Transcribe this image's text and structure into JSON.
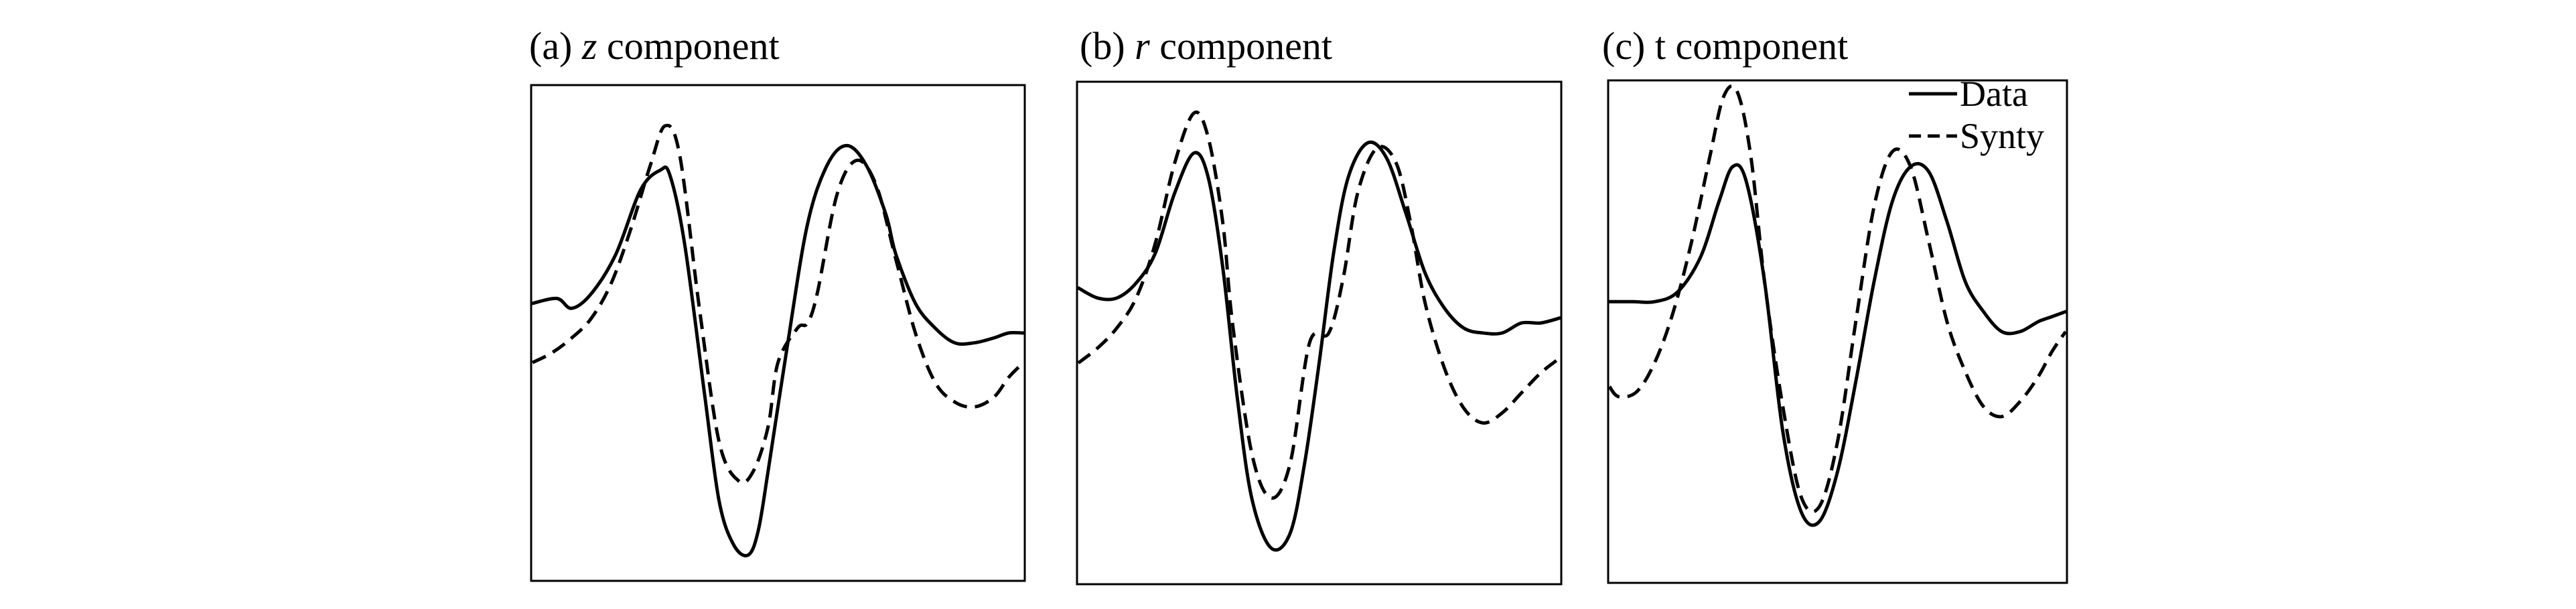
{
  "figure": {
    "panels": [
      {
        "prefix": "(a) ",
        "symbol": "z",
        "suffix": " component",
        "symbol_italic": true
      },
      {
        "prefix": "(b) ",
        "symbol": "r",
        "suffix": " component",
        "symbol_italic": true
      },
      {
        "prefix": "(c) ",
        "symbol": "t",
        "suffix": " component",
        "symbol_italic": false
      }
    ],
    "legend": {
      "placement": "top-right of panel (c)",
      "entries": [
        "Data",
        "Synty"
      ]
    }
  },
  "chart_data": [
    {
      "type": "line",
      "title": "(a) z component",
      "xlabel": "",
      "ylabel": "",
      "xlim": [
        0,
        1
      ],
      "ylim": [
        0,
        1
      ],
      "grid": false,
      "axis_ticks": false,
      "series": [
        {
          "name": "Data",
          "style": "solid",
          "x": [
            0.0,
            0.05,
            0.08,
            0.12,
            0.17,
            0.22,
            0.26,
            0.28,
            0.31,
            0.35,
            0.38,
            0.41,
            0.44,
            0.46,
            0.48,
            0.52,
            0.56,
            0.6,
            0.64,
            0.68,
            0.72,
            0.74,
            0.78,
            0.82,
            0.86,
            0.9,
            0.94,
            0.97,
            1.0
          ],
          "y": [
            0.56,
            0.57,
            0.55,
            0.58,
            0.66,
            0.79,
            0.83,
            0.82,
            0.68,
            0.38,
            0.16,
            0.07,
            0.05,
            0.1,
            0.22,
            0.48,
            0.72,
            0.84,
            0.88,
            0.84,
            0.74,
            0.66,
            0.56,
            0.51,
            0.48,
            0.48,
            0.49,
            0.5,
            0.5
          ]
        },
        {
          "name": "Synty",
          "style": "dashed",
          "x": [
            0.0,
            0.04,
            0.08,
            0.12,
            0.16,
            0.2,
            0.24,
            0.27,
            0.3,
            0.34,
            0.38,
            0.42,
            0.45,
            0.48,
            0.5,
            0.54,
            0.56,
            0.58,
            0.62,
            0.66,
            0.7,
            0.74,
            0.78,
            0.82,
            0.86,
            0.9,
            0.94,
            0.97,
            1.0
          ],
          "y": [
            0.44,
            0.46,
            0.49,
            0.53,
            0.6,
            0.71,
            0.84,
            0.92,
            0.86,
            0.55,
            0.28,
            0.2,
            0.22,
            0.31,
            0.44,
            0.51,
            0.52,
            0.58,
            0.78,
            0.85,
            0.8,
            0.65,
            0.5,
            0.4,
            0.36,
            0.35,
            0.37,
            0.41,
            0.44
          ]
        }
      ]
    },
    {
      "type": "line",
      "title": "(b) r component",
      "xlabel": "",
      "ylabel": "",
      "xlim": [
        0,
        1
      ],
      "ylim": [
        0,
        1
      ],
      "grid": false,
      "axis_ticks": false,
      "series": [
        {
          "name": "Data",
          "style": "solid",
          "x": [
            0.0,
            0.04,
            0.08,
            0.12,
            0.16,
            0.2,
            0.24,
            0.27,
            0.3,
            0.33,
            0.36,
            0.4,
            0.44,
            0.47,
            0.5,
            0.53,
            0.56,
            0.6,
            0.64,
            0.68,
            0.72,
            0.76,
            0.8,
            0.84,
            0.88,
            0.92,
            0.96,
            1.0
          ],
          "y": [
            0.59,
            0.57,
            0.57,
            0.6,
            0.66,
            0.78,
            0.86,
            0.81,
            0.63,
            0.37,
            0.17,
            0.07,
            0.1,
            0.24,
            0.44,
            0.66,
            0.81,
            0.88,
            0.85,
            0.74,
            0.62,
            0.55,
            0.51,
            0.5,
            0.5,
            0.52,
            0.52,
            0.53
          ]
        },
        {
          "name": "Synty",
          "style": "dashed",
          "x": [
            0.0,
            0.04,
            0.08,
            0.12,
            0.16,
            0.2,
            0.24,
            0.27,
            0.3,
            0.32,
            0.36,
            0.4,
            0.44,
            0.48,
            0.52,
            0.55,
            0.58,
            0.62,
            0.66,
            0.69,
            0.72,
            0.76,
            0.8,
            0.84,
            0.88,
            0.92,
            0.96,
            1.0
          ],
          "y": [
            0.44,
            0.47,
            0.51,
            0.57,
            0.68,
            0.84,
            0.94,
            0.89,
            0.72,
            0.52,
            0.26,
            0.17,
            0.24,
            0.48,
            0.5,
            0.61,
            0.78,
            0.87,
            0.84,
            0.72,
            0.56,
            0.43,
            0.35,
            0.32,
            0.34,
            0.38,
            0.42,
            0.45
          ]
        }
      ]
    },
    {
      "type": "line",
      "title": "(c) t component",
      "xlabel": "",
      "ylabel": "",
      "xlim": [
        0,
        1
      ],
      "ylim": [
        0,
        1
      ],
      "grid": false,
      "axis_ticks": false,
      "legend": {
        "placement": "top-right",
        "entries": [
          "Data",
          "Synty"
        ]
      },
      "series": [
        {
          "name": "Data",
          "style": "solid",
          "x": [
            0.0,
            0.05,
            0.1,
            0.15,
            0.2,
            0.24,
            0.27,
            0.3,
            0.34,
            0.38,
            0.42,
            0.46,
            0.5,
            0.54,
            0.58,
            0.62,
            0.66,
            0.7,
            0.74,
            0.78,
            0.82,
            0.86,
            0.9,
            0.94,
            0.97,
            1.0
          ],
          "y": [
            0.56,
            0.56,
            0.56,
            0.58,
            0.65,
            0.76,
            0.83,
            0.8,
            0.6,
            0.3,
            0.14,
            0.12,
            0.22,
            0.4,
            0.6,
            0.76,
            0.83,
            0.82,
            0.72,
            0.6,
            0.54,
            0.5,
            0.5,
            0.52,
            0.53,
            0.54
          ]
        },
        {
          "name": "Synty",
          "style": "dashed",
          "x": [
            0.0,
            0.02,
            0.06,
            0.1,
            0.14,
            0.18,
            0.22,
            0.25,
            0.28,
            0.31,
            0.34,
            0.38,
            0.42,
            0.46,
            0.5,
            0.54,
            0.58,
            0.62,
            0.66,
            0.7,
            0.74,
            0.78,
            0.82,
            0.86,
            0.9,
            0.94,
            0.97,
            1.0
          ],
          "y": [
            0.39,
            0.37,
            0.38,
            0.44,
            0.54,
            0.68,
            0.85,
            0.97,
            0.98,
            0.85,
            0.6,
            0.35,
            0.17,
            0.15,
            0.28,
            0.52,
            0.75,
            0.86,
            0.83,
            0.68,
            0.52,
            0.42,
            0.35,
            0.33,
            0.36,
            0.41,
            0.46,
            0.5
          ]
        }
      ]
    }
  ]
}
